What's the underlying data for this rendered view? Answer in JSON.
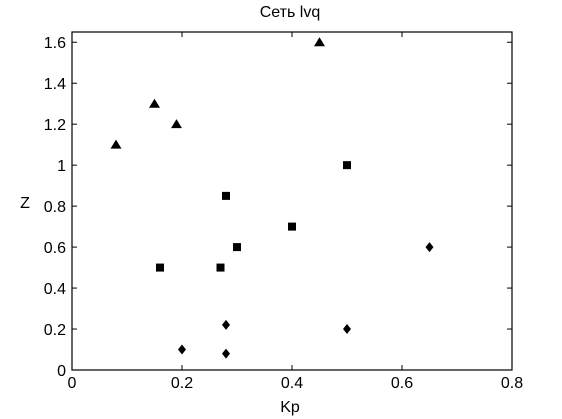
{
  "chart_data": {
    "type": "scatter",
    "title": "Сеть lvq",
    "xlabel": "Kp",
    "ylabel": "Z",
    "xlim": [
      0,
      0.8
    ],
    "ylim": [
      0,
      1.65
    ],
    "xticks": [
      0,
      0.2,
      0.4,
      0.6,
      0.8
    ],
    "xtick_labels": [
      "0",
      "0.2",
      "0.4",
      "0.6",
      "0.8"
    ],
    "yticks": [
      0,
      0.2,
      0.4,
      0.6,
      0.8,
      1,
      1.2,
      1.4,
      1.6
    ],
    "ytick_labels": [
      "0",
      "0.2",
      "0.4",
      "0.6",
      "0.8",
      "1",
      "1.2",
      "1.4",
      "1.6"
    ],
    "grid": false,
    "legend": "none",
    "series": [
      {
        "marker": "diamond",
        "color": "#000000",
        "points": [
          {
            "x": 0.2,
            "y": 0.1
          },
          {
            "x": 0.28,
            "y": 0.22
          },
          {
            "x": 0.28,
            "y": 0.08
          },
          {
            "x": 0.5,
            "y": 0.2
          },
          {
            "x": 0.65,
            "y": 0.6
          }
        ]
      },
      {
        "marker": "square",
        "color": "#000000",
        "points": [
          {
            "x": 0.16,
            "y": 0.5
          },
          {
            "x": 0.27,
            "y": 0.5
          },
          {
            "x": 0.28,
            "y": 0.85
          },
          {
            "x": 0.3,
            "y": 0.6
          },
          {
            "x": 0.4,
            "y": 0.7
          },
          {
            "x": 0.5,
            "y": 1.0
          }
        ]
      },
      {
        "marker": "triangle",
        "color": "#000000",
        "points": [
          {
            "x": 0.08,
            "y": 1.1
          },
          {
            "x": 0.15,
            "y": 1.3
          },
          {
            "x": 0.19,
            "y": 1.2
          },
          {
            "x": 0.45,
            "y": 1.6
          }
        ]
      }
    ]
  }
}
